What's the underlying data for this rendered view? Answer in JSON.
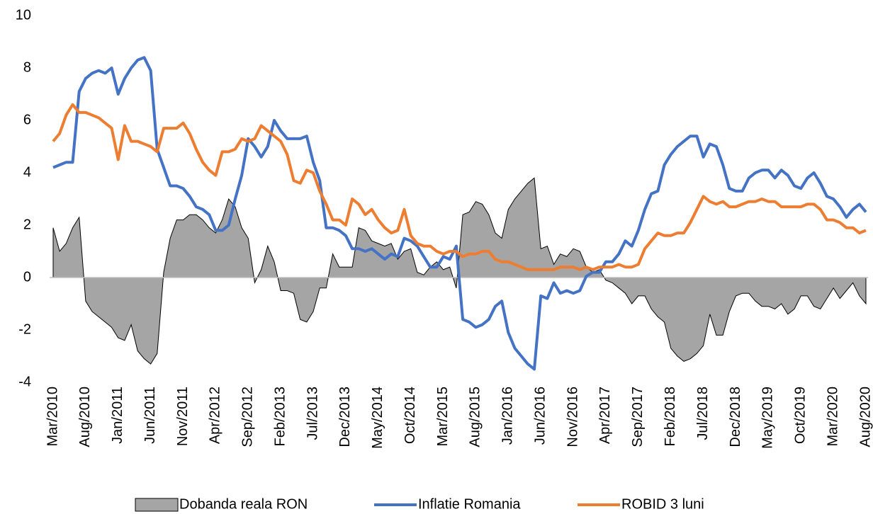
{
  "chart_data": {
    "type": "line",
    "categories": [
      "Mar/2010",
      null,
      null,
      null,
      null,
      "Aug/2010",
      null,
      null,
      null,
      null,
      "Jan/2011",
      null,
      null,
      null,
      null,
      "Jun/2011",
      null,
      null,
      null,
      null,
      "Nov/2011",
      null,
      null,
      null,
      null,
      "Apr/2012",
      null,
      null,
      null,
      null,
      "Sep/2012",
      null,
      null,
      null,
      null,
      "Feb/2013",
      null,
      null,
      null,
      null,
      "Jul/2013",
      null,
      null,
      null,
      null,
      "Dec/2013",
      null,
      null,
      null,
      null,
      "May/2014",
      null,
      null,
      null,
      null,
      "Oct/2014",
      null,
      null,
      null,
      null,
      "Mar/2015",
      null,
      null,
      null,
      null,
      "Aug/2015",
      null,
      null,
      null,
      null,
      "Jan/2016",
      null,
      null,
      null,
      null,
      "Jun/2016",
      null,
      null,
      null,
      null,
      "Nov/2016",
      null,
      null,
      null,
      null,
      "Apr/2017",
      null,
      null,
      null,
      null,
      "Sep/2017",
      null,
      null,
      null,
      null,
      "Feb/2018",
      null,
      null,
      null,
      null,
      "Jul/2018",
      null,
      null,
      null,
      null,
      "Dec/2018",
      null,
      null,
      null,
      null,
      "May/2019",
      null,
      null,
      null,
      null,
      "Oct/2019",
      null,
      null,
      null,
      null,
      "Mar/2020",
      null,
      null,
      null,
      null,
      "Aug/2020"
    ],
    "series": [
      {
        "name": "Dobanda reala RON",
        "type": "area",
        "color": "#a5a5a5",
        "values": [
          1.9,
          1.0,
          1.3,
          1.9,
          2.3,
          -0.9,
          -1.3,
          -1.5,
          -1.7,
          -1.9,
          -2.3,
          -2.4,
          -1.8,
          -2.8,
          -3.1,
          -3.3,
          -2.9,
          0.2,
          1.5,
          2.2,
          2.2,
          2.4,
          2.4,
          2.2,
          1.9,
          1.7,
          2.2,
          3.0,
          2.7,
          1.9,
          1.5,
          -0.2,
          0.3,
          1.2,
          0.6,
          -0.5,
          -0.5,
          -0.6,
          -1.6,
          -1.7,
          -1.3,
          -0.4,
          -0.4,
          0.9,
          0.4,
          0.4,
          0.4,
          1.9,
          1.8,
          1.4,
          1.3,
          1.2,
          1.3,
          0.7,
          1.0,
          1.1,
          0.2,
          0.1,
          0.4,
          0.6,
          0.3,
          0.4,
          -0.4,
          2.4,
          2.5,
          2.9,
          2.8,
          2.4,
          1.7,
          1.5,
          2.6,
          3.0,
          3.3,
          3.6,
          3.8,
          1.1,
          1.2,
          0.5,
          0.9,
          0.8,
          1.1,
          1.0,
          0.4,
          0.2,
          0.3,
          -0.1,
          -0.2,
          -0.4,
          -0.6,
          -1.0,
          -0.7,
          -0.7,
          -1.2,
          -1.5,
          -1.7,
          -2.7,
          -3.0,
          -3.2,
          -3.1,
          -2.9,
          -2.6,
          -1.4,
          -2.2,
          -2.2,
          -1.3,
          -0.7,
          -0.6,
          -0.6,
          -0.9,
          -1.1,
          -1.1,
          -1.2,
          -1.0,
          -1.4,
          -1.2,
          -0.7,
          -0.7,
          -1.1,
          -1.2,
          -0.8,
          -0.4,
          -0.8,
          -0.5,
          -0.2,
          -0.7,
          -1.0
        ]
      },
      {
        "name": "Inflatie Romania",
        "type": "line",
        "color": "#4472c4",
        "values": [
          4.2,
          4.3,
          4.4,
          4.4,
          7.1,
          7.6,
          7.8,
          7.9,
          7.8,
          8.0,
          7.0,
          7.6,
          8.0,
          8.3,
          8.4,
          7.9,
          4.9,
          4.2,
          3.5,
          3.5,
          3.4,
          3.1,
          2.7,
          2.6,
          2.4,
          1.8,
          1.8,
          2.0,
          3.0,
          3.9,
          5.3,
          5.0,
          4.6,
          5.0,
          6.0,
          5.6,
          5.3,
          5.3,
          5.3,
          5.4,
          4.4,
          3.7,
          1.9,
          1.9,
          1.8,
          1.6,
          1.1,
          1.1,
          1.0,
          1.1,
          0.9,
          0.7,
          0.9,
          0.8,
          1.5,
          1.4,
          1.2,
          0.8,
          0.4,
          0.4,
          0.8,
          0.7,
          1.2,
          -1.6,
          -1.7,
          -1.9,
          -1.8,
          -1.6,
          -1.1,
          -0.9,
          -2.1,
          -2.7,
          -3.0,
          -3.3,
          -3.5,
          -0.7,
          -0.8,
          -0.2,
          -0.6,
          -0.5,
          -0.6,
          -0.5,
          0.05,
          0.2,
          0.2,
          0.6,
          0.6,
          0.9,
          1.4,
          1.2,
          1.8,
          2.6,
          3.2,
          3.3,
          4.3,
          4.7,
          5.0,
          5.2,
          5.4,
          5.4,
          4.6,
          5.1,
          5.0,
          4.3,
          3.4,
          3.3,
          3.3,
          3.8,
          4.0,
          4.1,
          4.1,
          3.8,
          4.1,
          3.9,
          3.5,
          3.4,
          3.8,
          4.0,
          3.6,
          3.1,
          3.0,
          2.7,
          2.3,
          2.6,
          2.8,
          2.5
        ]
      },
      {
        "name": "ROBID 3 luni",
        "type": "line",
        "color": "#ed7d31",
        "values": [
          5.2,
          5.5,
          6.2,
          6.6,
          6.3,
          6.3,
          6.2,
          6.1,
          5.9,
          5.7,
          4.5,
          5.8,
          5.2,
          5.2,
          5.1,
          5.0,
          4.8,
          5.7,
          5.7,
          5.7,
          5.9,
          5.5,
          4.9,
          4.4,
          4.1,
          3.9,
          4.8,
          4.8,
          4.9,
          5.3,
          5.2,
          5.3,
          5.8,
          5.6,
          5.4,
          5.2,
          4.7,
          3.7,
          3.6,
          4.1,
          4.0,
          3.3,
          2.8,
          2.2,
          2.2,
          2.0,
          3.0,
          2.8,
          2.4,
          2.6,
          2.2,
          1.9,
          1.7,
          1.8,
          2.6,
          1.6,
          1.3,
          1.2,
          1.2,
          1.0,
          0.9,
          1.0,
          1.0,
          0.8,
          0.9,
          0.9,
          1.0,
          1.0,
          0.7,
          0.6,
          0.6,
          0.5,
          0.4,
          0.3,
          0.3,
          0.3,
          0.3,
          0.3,
          0.4,
          0.4,
          0.4,
          0.3,
          0.4,
          0.3,
          0.4,
          0.4,
          0.4,
          0.5,
          0.4,
          0.4,
          0.5,
          1.1,
          1.4,
          1.7,
          1.6,
          1.6,
          1.7,
          1.7,
          2.1,
          2.6,
          3.1,
          2.9,
          2.8,
          2.9,
          2.7,
          2.7,
          2.8,
          2.9,
          2.9,
          3.0,
          2.9,
          2.9,
          2.7,
          2.7,
          2.7,
          2.7,
          2.8,
          2.8,
          2.6,
          2.2,
          2.2,
          2.1,
          1.9,
          1.9,
          1.7,
          1.8
        ]
      }
    ],
    "ylim": [
      -4,
      10
    ],
    "yticks": [
      -4,
      -2,
      0,
      2,
      4,
      6,
      8,
      10
    ]
  }
}
